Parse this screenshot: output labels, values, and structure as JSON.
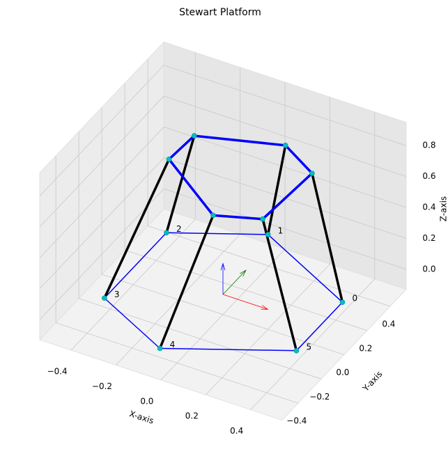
{
  "chart_data": {
    "type": "stewart3d",
    "title": "Stewart Platform",
    "xlabel": "X-axis",
    "ylabel": "Y-axis",
    "zlabel": "Z-axis",
    "xlim": [
      -0.54,
      0.54
    ],
    "ylim": [
      -0.54,
      0.54
    ],
    "zlim": [
      -0.13,
      0.95
    ],
    "xticks": [
      {
        "value": -0.4,
        "label": "−0.4"
      },
      {
        "value": -0.2,
        "label": "−0.2"
      },
      {
        "value": 0,
        "label": "0.0"
      },
      0.2,
      0.4
    ],
    "yticks": [
      {
        "value": -0.4,
        "label": "−0.4"
      },
      {
        "value": -0.2,
        "label": "−0.2"
      },
      {
        "value": 0,
        "label": "0.0"
      },
      0.2,
      0.4
    ],
    "zticks": [
      {
        "value": 0,
        "label": "0.0"
      },
      0.2,
      0.4,
      0.6,
      0.8
    ],
    "grid": true,
    "base": {
      "x": [
        0.43,
        -0.04,
        -0.39,
        -0.39,
        -0.04,
        0.43
      ],
      "y": [
        0.2,
        0.47,
        0.27,
        -0.27,
        -0.47,
        -0.2
      ],
      "z": [
        0,
        0,
        0,
        0,
        0,
        0
      ],
      "labels": [
        "0",
        "1",
        "2",
        "3",
        "4",
        "5"
      ],
      "color": "#0000ff"
    },
    "platform": {
      "x": [
        0.31,
        0.13,
        -0.21,
        -0.22,
        0.11,
        0.29
      ],
      "y": [
        0.17,
        0.29,
        0.16,
        -0.04,
        -0.3,
        -0.22
      ],
      "z": [
        0.8,
        0.8,
        0.8,
        0.8,
        0.8,
        0.8
      ],
      "color": "#0000ff"
    },
    "leg_color": "#000000",
    "joint_color": "#00bfbf",
    "frame": {
      "length": 0.2,
      "colors": [
        "#ff0000",
        "#008000",
        "#0000ff"
      ]
    }
  }
}
